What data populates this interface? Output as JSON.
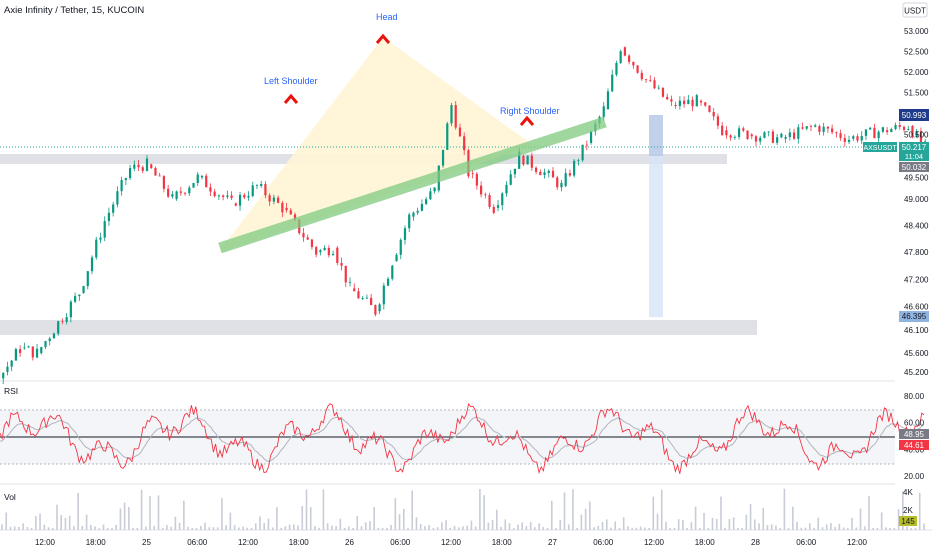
{
  "header": {
    "symbol_title": "Axie Infinity / Tether, 15, KUCOIN",
    "currency": "USDT"
  },
  "annotations": {
    "head": "Head",
    "left_shoulder": "Left Shoulder",
    "right_shoulder": "Right Shoulder"
  },
  "price_axis": {
    "ticks": [
      "53.000",
      "52.500",
      "52.000",
      "51.500",
      "51.000",
      "50.500",
      "49.500",
      "49.000",
      "48.400",
      "47.800",
      "47.200",
      "46.600",
      "46.100",
      "45.600",
      "45.200"
    ],
    "badges": [
      {
        "id": "target",
        "text": "50.993",
        "color": "#2962ff"
      },
      {
        "id": "symbol",
        "text": "AXSUSDT",
        "color": "#26a69a"
      },
      {
        "id": "last",
        "text": "50.217",
        "color": "#26a69a"
      },
      {
        "id": "countdown",
        "text": "11:04",
        "color": "#26a69a"
      },
      {
        "id": "level",
        "text": "50.032",
        "color": "#787b86"
      },
      {
        "id": "low",
        "text": "46.395",
        "color": "#90b4e0"
      }
    ]
  },
  "rsi": {
    "label": "RSI",
    "ticks": [
      "80.00",
      "60.00",
      "40.00",
      "20.00"
    ],
    "badges": [
      {
        "id": "rsi_ma",
        "text": "48.95",
        "color": "#787b86"
      },
      {
        "id": "rsi_val",
        "text": "44.61",
        "color": "#f23645"
      }
    ]
  },
  "volume": {
    "label": "Vol",
    "ticks": [
      "4K",
      "2K"
    ],
    "badge": {
      "text": "145",
      "color": "#b5bd2a"
    }
  },
  "time_axis": [
    "12:00",
    "18:00",
    "25",
    "06:00",
    "12:00",
    "18:00",
    "26",
    "06:00",
    "12:00",
    "18:00",
    "27",
    "06:00",
    "12:00",
    "18:00",
    "28",
    "06:00",
    "12:00"
  ],
  "colors": {
    "up": "#089981",
    "down": "#f23645",
    "trendline": "#7fc97f",
    "pattern_fill": "#fff5d6",
    "marker": "#e8130d",
    "annotation_text": "#2962ff",
    "zone": "#d1d4dc",
    "projection": "#d6e4f7"
  },
  "chart_data": {
    "type": "candlestick",
    "title": "Axie Infinity / Tether, 15, KUCOIN",
    "x_range": [
      "24 08:00",
      "28 14:00"
    ],
    "y_range": [
      45.0,
      53.4
    ],
    "y_scale": "log",
    "price_path": [
      {
        "t": "24 07:30",
        "price": 48.1
      },
      {
        "t": "24 08:30",
        "price": 46.8
      },
      {
        "t": "24 09:00",
        "price": 45.3
      },
      {
        "t": "24 15:30",
        "price": 45.2
      },
      {
        "t": "24 16:30",
        "price": 45.7
      },
      {
        "t": "24 17:30",
        "price": 45.6
      },
      {
        "t": "24 20:00",
        "price": 46.9
      },
      {
        "t": "24 21:30",
        "price": 48.5
      },
      {
        "t": "24 23:00",
        "price": 49.7
      },
      {
        "t": "25 00:00",
        "price": 49.8
      },
      {
        "t": "25 01:30",
        "price": 49.0
      },
      {
        "t": "25 03:00",
        "price": 49.5
      },
      {
        "t": "25 05:00",
        "price": 48.9
      },
      {
        "t": "25 06:30",
        "price": 49.3
      },
      {
        "t": "25 08:00",
        "price": 48.8
      },
      {
        "t": "25 10:00",
        "price": 47.8
      },
      {
        "t": "25 11:00",
        "price": 47.9
      },
      {
        "t": "25 12:00",
        "price": 47.0
      },
      {
        "t": "25 13:30",
        "price": 46.5
      },
      {
        "t": "25 14:30",
        "price": 47.6
      },
      {
        "t": "25 15:30",
        "price": 48.6
      },
      {
        "t": "25 17:00",
        "price": 49.2
      },
      {
        "t": "25 18:00",
        "price": 51.2
      },
      {
        "t": "25 19:00",
        "price": 49.6
      },
      {
        "t": "25 20:30",
        "price": 48.8
      },
      {
        "t": "25 22:00",
        "price": 50.0
      },
      {
        "t": "25 23:30",
        "price": 49.6
      },
      {
        "t": "26 00:30",
        "price": 49.3
      },
      {
        "t": "26 02:00",
        "price": 50.3
      },
      {
        "t": "26 03:00",
        "price": 51.1
      },
      {
        "t": "26 04:00",
        "price": 52.6
      },
      {
        "t": "26 05:30",
        "price": 51.8
      },
      {
        "t": "26 07:00",
        "price": 51.2
      },
      {
        "t": "26 08:30",
        "price": 51.3
      },
      {
        "t": "26 10:00",
        "price": 50.6
      },
      {
        "t": "26 11:30",
        "price": 50.5
      },
      {
        "t": "26 13:30",
        "price": 50.4
      },
      {
        "t": "26 15:30",
        "price": 50.7
      },
      {
        "t": "26 17:30",
        "price": 50.4
      },
      {
        "t": "26 19:30",
        "price": 50.6
      },
      {
        "t": "26 21:00",
        "price": 50.7
      },
      {
        "t": "26 22:00",
        "price": 50.2
      }
    ],
    "horizontal_zones": [
      {
        "name": "resistance",
        "from": 49.96,
        "to": 50.1
      },
      {
        "name": "support",
        "from": 45.98,
        "to": 46.22
      }
    ],
    "trendline": [
      {
        "t": "25 10:00",
        "price": 47.95
      },
      {
        "t": "27 09:00",
        "price": 50.7
      }
    ],
    "pattern": "head and shoulders",
    "rsi_levels": [
      70,
      30
    ],
    "rsi_range": [
      20,
      80
    ]
  }
}
